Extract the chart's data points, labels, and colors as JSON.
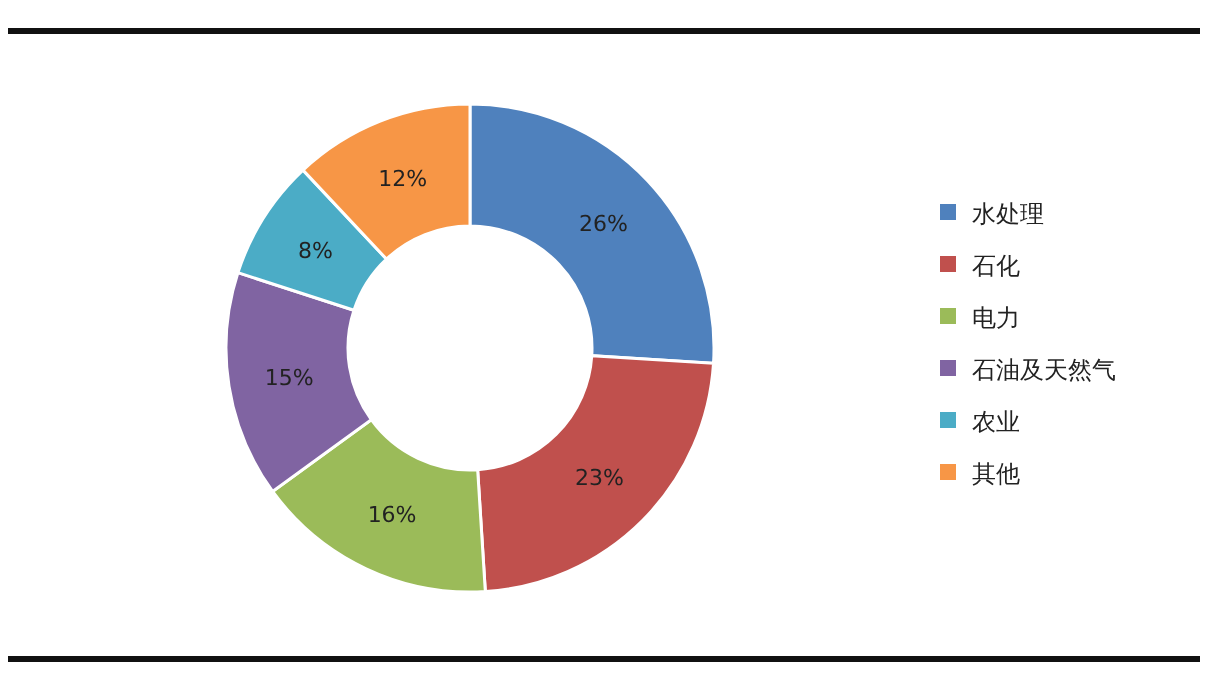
{
  "chart_data": {
    "type": "donut",
    "categories": [
      "水处理",
      "石化",
      "电力",
      "石油及天然气",
      "农业",
      "其他"
    ],
    "values": [
      26,
      23,
      16,
      15,
      8,
      12
    ],
    "colors": [
      "#4f81bd",
      "#c0504d",
      "#9bbb59",
      "#8064a2",
      "#4bacc6",
      "#f79646"
    ],
    "value_labels": [
      "26%",
      "23%",
      "16%",
      "15%",
      "8%",
      "12%"
    ],
    "legend": "right"
  }
}
